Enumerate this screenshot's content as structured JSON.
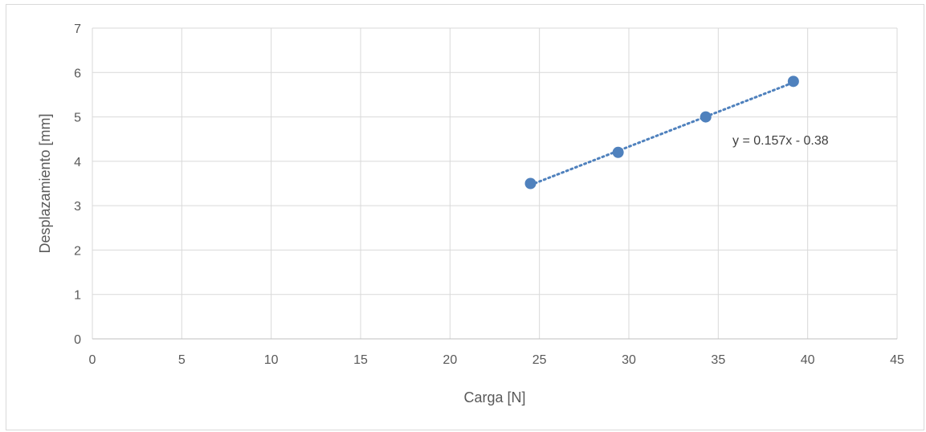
{
  "chart_data": {
    "type": "scatter",
    "title": "",
    "xlabel": "Carga [N]",
    "ylabel": "Desplazamiento [mm]",
    "xlim": [
      0,
      45
    ],
    "ylim": [
      0,
      7
    ],
    "x_ticks": [
      0,
      5,
      10,
      15,
      20,
      25,
      30,
      35,
      40,
      45
    ],
    "y_ticks": [
      0,
      1,
      2,
      3,
      4,
      5,
      6,
      7
    ],
    "grid": true,
    "legend": "none",
    "series": [
      {
        "x": [
          24.5,
          29.4,
          34.3,
          39.2
        ],
        "y": [
          3.5,
          4.2,
          5.0,
          5.8
        ],
        "color": "#4f81bd"
      }
    ],
    "trendline": {
      "type": "linear",
      "slope": 0.157,
      "intercept": -0.38,
      "x_range": [
        24.5,
        39.2
      ],
      "style": "dotted",
      "color": "#4f81bd",
      "equation_label": "y = 0.157x - 0.38"
    }
  }
}
